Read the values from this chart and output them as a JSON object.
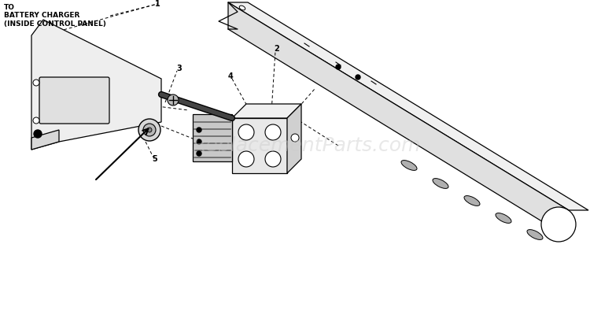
{
  "background_color": "#ffffff",
  "label_text": "TO\nBATTERY CHARGER\n(INSIDE CONTROL PANEL)",
  "label_fontsize": 6.5,
  "watermark": "ReplacementParts.com",
  "watermark_color": "#cccccc",
  "watermark_alpha": 0.45,
  "lw": 0.9,
  "rail_top_color": "#f0f0f0",
  "rail_front_color": "#e0e0e0",
  "rail_edge_color": "#000000",
  "hole_color": "#b0b0b0",
  "slot_color": "#b0b0b0",
  "box_face_color": "#e8e8e8",
  "box_side_color": "#d0d0d0",
  "box_top_color": "#f0f0f0",
  "panel_face_color": "#eeeeee",
  "panel_side_color": "#d8d8d8"
}
